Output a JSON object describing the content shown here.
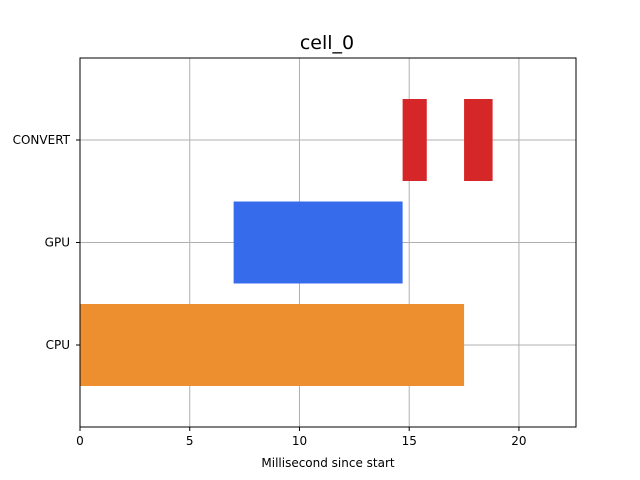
{
  "chart_data": {
    "type": "bar",
    "orientation": "horizontal-timeline",
    "title": "cell_0",
    "xlabel": "Millisecond since start",
    "ylabel": "",
    "xlim": [
      0,
      22.6
    ],
    "x_ticks": [
      0,
      5,
      10,
      15,
      20
    ],
    "categories": [
      "CPU",
      "GPU",
      "CONVERT"
    ],
    "grid": true,
    "series": [
      {
        "category": "CPU",
        "color": "#ee8f2f",
        "intervals": [
          [
            0,
            17.5
          ]
        ]
      },
      {
        "category": "GPU",
        "color": "#366cec",
        "intervals": [
          [
            7.0,
            14.7
          ]
        ]
      },
      {
        "category": "CONVERT",
        "color": "#d62728",
        "intervals": [
          [
            14.7,
            15.8
          ],
          [
            17.5,
            18.8
          ]
        ]
      }
    ]
  }
}
